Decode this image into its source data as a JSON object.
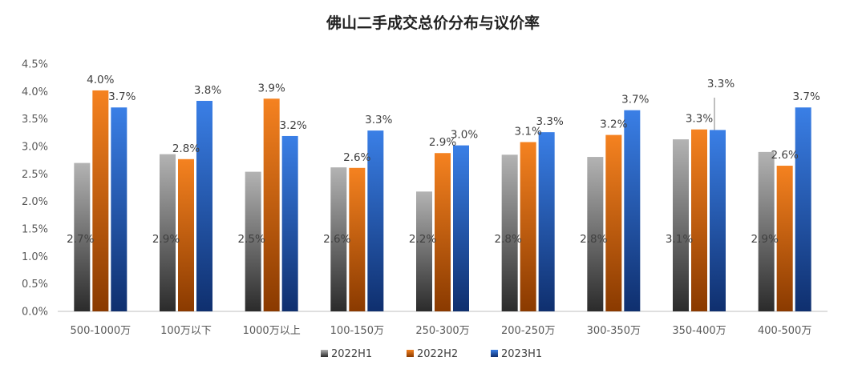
{
  "chart_data": {
    "type": "bar",
    "title": "佛山二手成交总价分布与议价率",
    "xlabel": "",
    "ylabel": "",
    "ylim": [
      0,
      0.045
    ],
    "yticks": [
      "0.0%",
      "0.5%",
      "1.0%",
      "1.5%",
      "2.0%",
      "2.5%",
      "3.0%",
      "3.5%",
      "4.0%",
      "4.5%"
    ],
    "grid": false,
    "legend": "bottom",
    "categories": [
      "500-1000万",
      "100万以下",
      "1000万以上",
      "100-150万",
      "250-300万",
      "200-250万",
      "300-350万",
      "350-400万",
      "400-500万"
    ],
    "series": [
      {
        "name": "2022H1",
        "color": "#a6a6a6",
        "values": [
          0.027,
          0.0286,
          0.0254,
          0.0262,
          0.0218,
          0.0285,
          0.0281,
          0.0313,
          0.029
        ],
        "labels": [
          "2.7%",
          "2.9%",
          "2.5%",
          "2.6%",
          "2.2%",
          "2.8%",
          "2.8%",
          "3.1%",
          "2.9%"
        ]
      },
      {
        "name": "2022H2",
        "color": "#f07e13",
        "values": [
          0.0402,
          0.0277,
          0.0387,
          0.0261,
          0.0288,
          0.0308,
          0.0321,
          0.0331,
          0.0265
        ],
        "labels": [
          "4.0%",
          "2.8%",
          "3.9%",
          "2.6%",
          "2.9%",
          "3.1%",
          "3.2%",
          "3.3%",
          "2.6%"
        ]
      },
      {
        "name": "2023H1",
        "color": "#2e6fd8",
        "values": [
          0.0371,
          0.0383,
          0.0319,
          0.0329,
          0.0302,
          0.0326,
          0.0366,
          0.033,
          0.0371
        ],
        "labels": [
          "3.7%",
          "3.8%",
          "3.2%",
          "3.3%",
          "3.0%",
          "3.3%",
          "3.7%",
          "3.3%",
          "3.7%"
        ]
      }
    ]
  }
}
